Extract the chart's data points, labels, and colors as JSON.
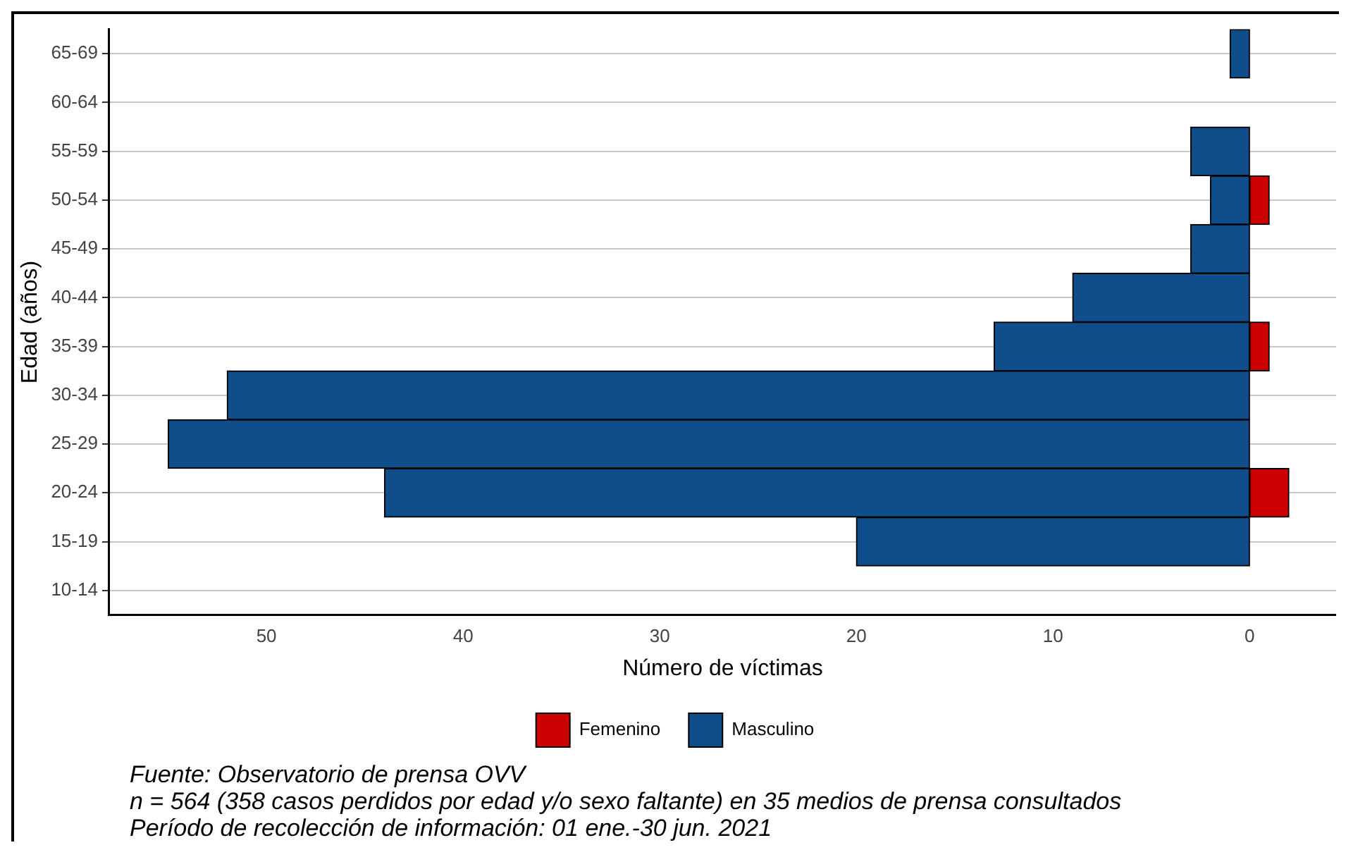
{
  "chart_data": {
    "type": "bar",
    "orientation": "horizontal",
    "stacked": true,
    "xlabel": "Número de víctimas",
    "ylabel": "Edad (años)",
    "categories": [
      "65-69",
      "60-64",
      "55-59",
      "50-54",
      "45-49",
      "40-44",
      "35-39",
      "30-34",
      "25-29",
      "20-24",
      "15-19",
      "10-14"
    ],
    "series": [
      {
        "name": "Femenino",
        "color": "#cc0000",
        "values": [
          null,
          null,
          null,
          -1,
          null,
          null,
          -1,
          null,
          null,
          -2,
          null,
          null
        ]
      },
      {
        "name": "Masculino",
        "color": "#0f4e8b",
        "values": [
          1,
          null,
          3,
          2,
          3,
          9,
          13,
          52,
          55,
          44,
          20,
          null
        ]
      }
    ],
    "xlim": [
      58,
      -4.4
    ],
    "xticks": [
      50,
      40,
      30,
      20,
      10,
      0
    ],
    "grid": "y",
    "legend": "bottom",
    "annotations": [
      "Fuente: Observatorio de prensa OVV",
      "n = 564 (358 casos perdidos por edad y/o sexo faltante) en 35 medios de prensa consultados",
      "Período de recolección de información: 01 ene.-30 jun. 2021"
    ]
  }
}
